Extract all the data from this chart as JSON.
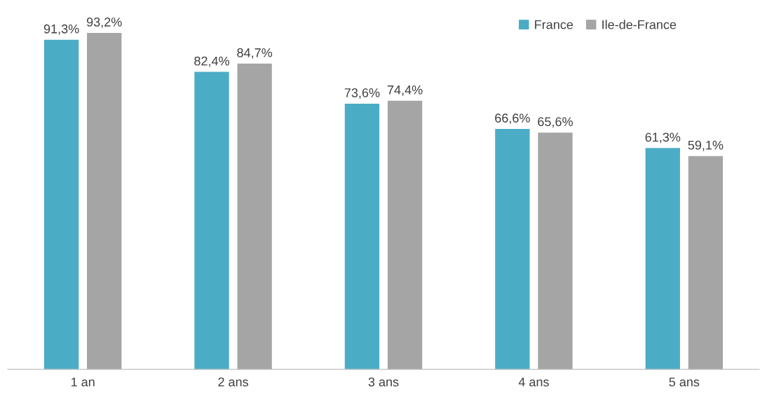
{
  "chart_data": {
    "type": "bar",
    "categories": [
      "1 an",
      "2 ans",
      "3 ans",
      "4 ans",
      "5 ans"
    ],
    "series": [
      {
        "name": "France",
        "color": "#4bacc6",
        "values": [
          91.3,
          82.4,
          73.6,
          66.6,
          61.3
        ],
        "value_labels": [
          "91,3%",
          "82,4%",
          "73,6%",
          "66,6%",
          "61,3%"
        ]
      },
      {
        "name": "Ile-de-France",
        "color": "#a5a5a5",
        "values": [
          93.2,
          84.7,
          74.4,
          65.6,
          59.1
        ],
        "value_labels": [
          "93,2%",
          "84,7%",
          "74,4%",
          "65,6%",
          "59,1%"
        ]
      }
    ],
    "tick_labels": "x",
    "grid": false,
    "legend": "top right"
  }
}
